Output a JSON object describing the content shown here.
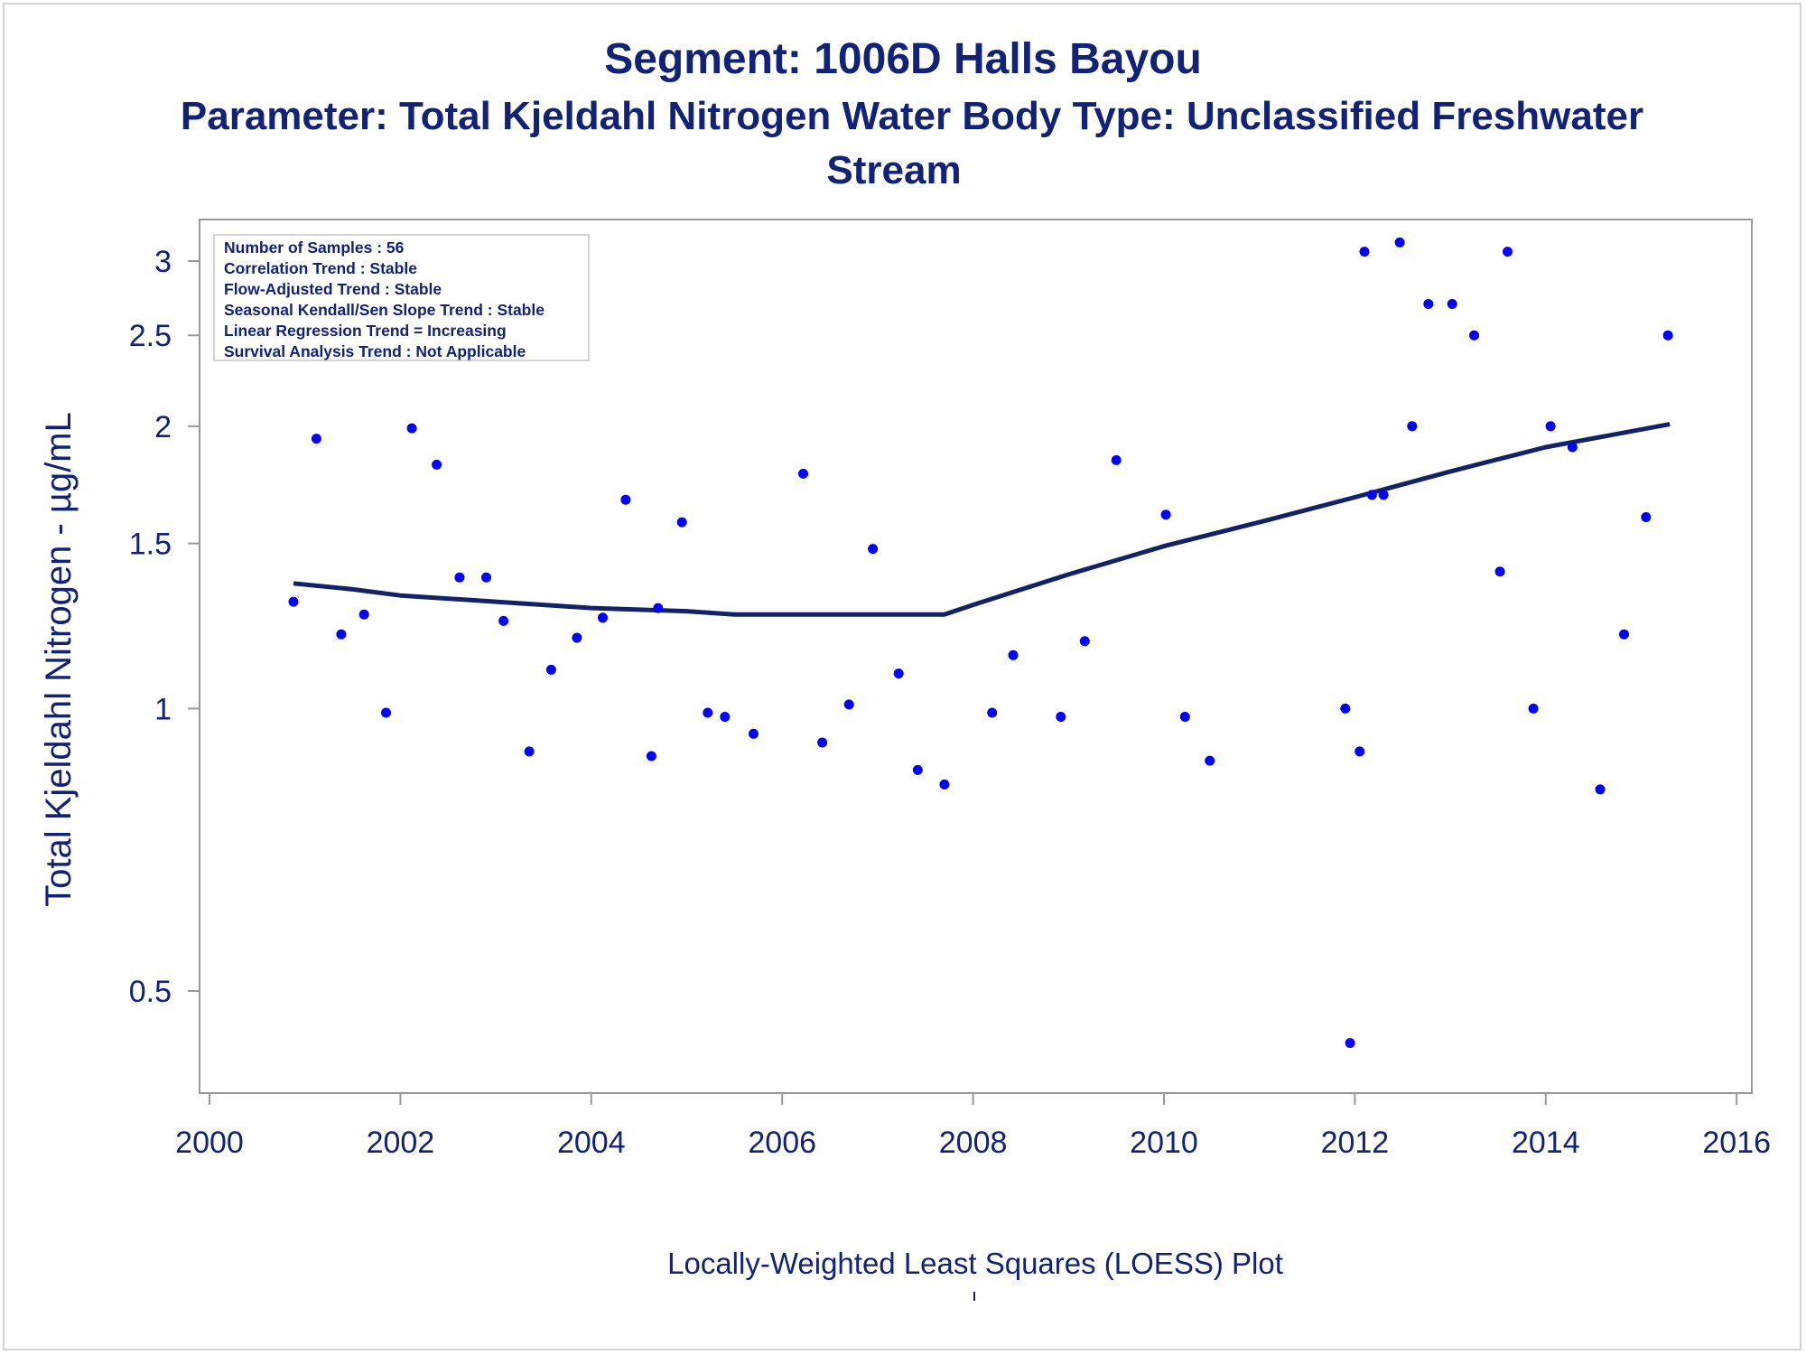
{
  "titles": {
    "line1": "Segment: 1006D  Halls Bayou",
    "line2": "Parameter: Total Kjeldahl Nitrogen   Water Body Type: Unclassified Freshwater",
    "line3": "Stream"
  },
  "stats": [
    "Number of Samples : 56",
    "Correlation Trend : Stable",
    "Flow-Adjusted Trend : Stable",
    "Seasonal Kendall/Sen Slope Trend : Stable",
    "Linear Regression Trend = Increasing",
    "Survival Analysis Trend : Not Applicable"
  ],
  "footnote": "Locally-Weighted Least Squares (LOESS) Plot",
  "colors": {
    "text": "#112277",
    "points": "#0000ff",
    "line": "#112266",
    "axis": "#999999"
  },
  "chart_data": {
    "type": "scatter",
    "ylabel": "Total Kjeldahl Nitrogen -  µg/mL",
    "xlabel": "",
    "yscale": "log",
    "xlim": [
      2000,
      2016
    ],
    "ylim": [
      0.42,
      3.4
    ],
    "xticks": [
      "2000",
      "2002",
      "2004",
      "2006",
      "2008",
      "2010",
      "2012",
      "2014",
      "2016"
    ],
    "yticks": [
      {
        "value": 0.5,
        "label": "0.5"
      },
      {
        "value": 1,
        "label": "1"
      },
      {
        "value": 1.5,
        "label": "1.5"
      },
      {
        "value": 2,
        "label": "2"
      },
      {
        "value": 2.5,
        "label": "2.5"
      },
      {
        "value": 3,
        "label": "3"
      }
    ],
    "grid": false,
    "series": [
      {
        "kind": "points",
        "x": [
          2000.88,
          2001.12,
          2001.38,
          2001.62,
          2001.85,
          2002.12,
          2002.38,
          2002.62,
          2002.9,
          2003.08,
          2003.35,
          2003.58,
          2003.85,
          2004.12,
          2004.36,
          2004.63,
          2004.7,
          2004.95,
          2005.22,
          2005.4,
          2005.7,
          2006.22,
          2006.42,
          2006.7,
          2006.95,
          2007.22,
          2007.42,
          2007.7,
          2008.2,
          2008.42,
          2008.92,
          2009.17,
          2009.5,
          2010.02,
          2010.22,
          2010.48,
          2011.9,
          2011.95,
          2012.05,
          2012.1,
          2012.18,
          2012.3,
          2012.47,
          2012.6,
          2012.77,
          2013.02,
          2013.25,
          2013.52,
          2013.6,
          2013.87,
          2014.05,
          2014.28,
          2014.57,
          2014.82,
          2015.05,
          2015.28
        ],
        "y": [
          1.3,
          1.94,
          1.2,
          1.26,
          0.99,
          1.99,
          1.82,
          1.38,
          1.38,
          1.24,
          0.9,
          1.1,
          1.19,
          1.25,
          1.67,
          0.89,
          1.28,
          1.58,
          0.99,
          0.98,
          0.94,
          1.78,
          0.92,
          1.01,
          1.48,
          1.09,
          0.86,
          0.83,
          0.99,
          1.14,
          0.98,
          1.18,
          1.84,
          1.61,
          0.98,
          0.88,
          1.0,
          0.44,
          0.9,
          3.07,
          1.69,
          1.69,
          3.14,
          2.0,
          2.7,
          2.7,
          2.5,
          1.4,
          3.07,
          1.0,
          2.0,
          1.9,
          0.82,
          1.2,
          1.6,
          2.5
        ]
      },
      {
        "kind": "line",
        "x": [
          2000.88,
          2001.5,
          2002,
          2003,
          2004,
          2005,
          2005.5,
          2006,
          2007,
          2007.7,
          2008,
          2009,
          2010,
          2011,
          2012,
          2013,
          2014,
          2015.3
        ],
        "y": [
          1.36,
          1.34,
          1.32,
          1.3,
          1.28,
          1.27,
          1.26,
          1.26,
          1.26,
          1.26,
          1.29,
          1.39,
          1.49,
          1.58,
          1.68,
          1.79,
          1.9,
          2.01
        ]
      }
    ]
  }
}
